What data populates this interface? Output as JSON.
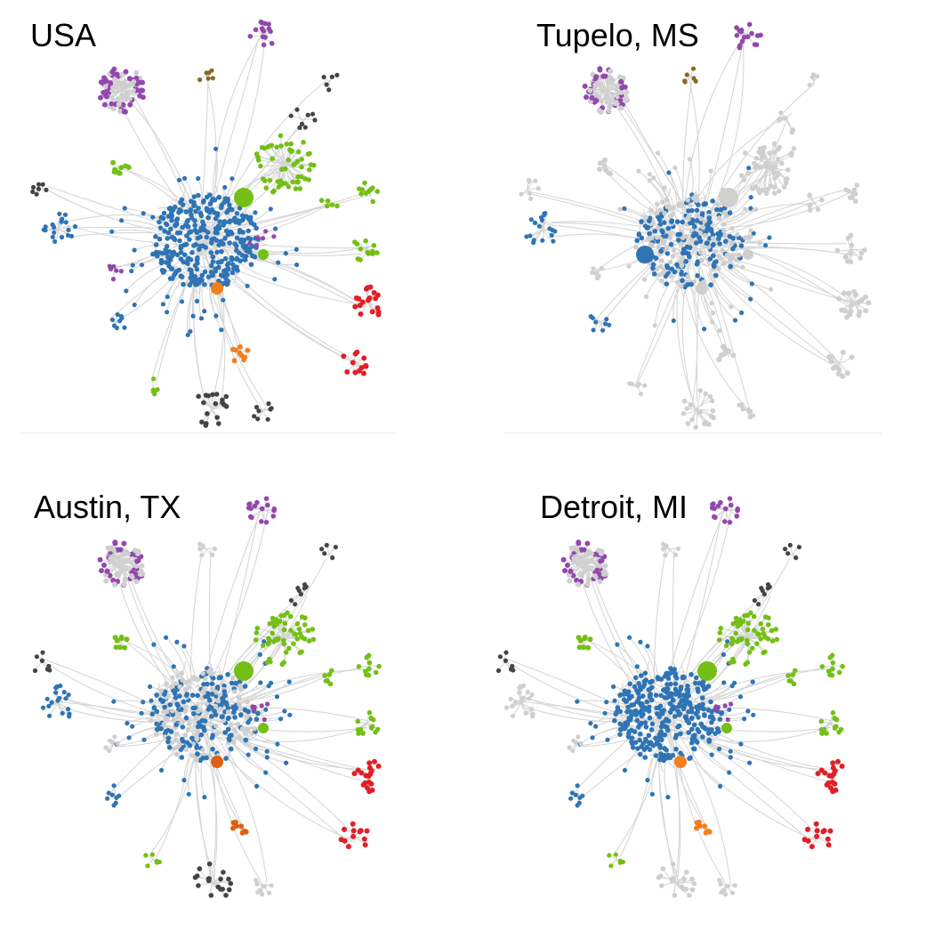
{
  "colors": {
    "blue": "#2f74b5",
    "purple": "#9347ad",
    "green": "#74bf15",
    "red": "#e21f25",
    "orange": "#f28020",
    "darkorange": "#dd6212",
    "brown": "#8c6824",
    "dark": "#444444",
    "gray": "#cfcfcf",
    "edge": "#d4d4d4"
  },
  "panels": [
    {
      "title": "USA",
      "colors": {
        "hub": "blue",
        "top_cluster": "purple",
        "top_mid": "brown",
        "upper_left_ring": "purple",
        "upper_left_green": "green",
        "left_far": "dark",
        "left_mid": "blue",
        "left_purple": "purple",
        "lower_left": "blue",
        "bottom": "dark",
        "bottom_small": "dark",
        "bottom_green": "green",
        "orange_cluster": "orange",
        "orange_node": "orange",
        "red_mid": "red",
        "red_low": "red",
        "right_green1": "green",
        "right_green2": "green",
        "right_green3": "green",
        "green_ne": "green",
        "big_green": "green",
        "mid_green": "green",
        "upper_dark": "dark",
        "top_right_dark": "dark",
        "small_purple_arc": "purple"
      }
    },
    {
      "title": "Tupelo, MS",
      "colors": {
        "hub": "blue",
        "hub_bias": "gray",
        "top_cluster": "purple",
        "top_mid": "brown",
        "upper_left_ring": "purple",
        "upper_left_green": "gray",
        "left_far": "gray",
        "left_mid": "blue",
        "left_purple": "gray",
        "lower_left": "blue",
        "bottom": "gray",
        "bottom_small": "gray",
        "bottom_green": "gray",
        "orange_cluster": "gray",
        "orange_node": "gray",
        "red_mid": "gray",
        "red_low": "gray",
        "right_green1": "gray",
        "right_green2": "gray",
        "right_green3": "gray",
        "green_ne": "gray",
        "big_green": "gray",
        "mid_green": "gray",
        "upper_dark": "gray",
        "top_right_dark": "gray",
        "small_purple_arc": "gray",
        "big_blue": "blue"
      }
    },
    {
      "title": "Austin, TX",
      "colors": {
        "hub": "blue",
        "hub_bias": "gray",
        "top_cluster": "purple",
        "top_mid": "gray",
        "upper_left_ring": "purple",
        "upper_left_green": "green",
        "left_far": "dark",
        "left_mid": "blue",
        "left_purple": "gray",
        "lower_left": "blue",
        "bottom": "dark",
        "bottom_small": "gray",
        "bottom_green": "green",
        "orange_cluster": "darkorange",
        "orange_node": "darkorange",
        "red_mid": "red",
        "red_low": "red",
        "right_green1": "green",
        "right_green2": "green",
        "right_green3": "green",
        "green_ne": "green",
        "big_green": "green",
        "mid_green": "green",
        "upper_dark": "dark",
        "top_right_dark": "dark",
        "small_purple_arc": "purple"
      }
    },
    {
      "title": "Detroit, MI",
      "colors": {
        "hub": "blue",
        "hub_bias": "blue",
        "top_cluster": "purple",
        "top_mid": "gray",
        "upper_left_ring": "purple",
        "upper_left_green": "green",
        "left_far": "dark",
        "left_mid": "gray",
        "left_purple": "gray",
        "lower_left": "blue",
        "bottom": "gray",
        "bottom_small": "gray",
        "bottom_green": "green",
        "orange_cluster": "orange",
        "orange_node": "orange",
        "red_mid": "red",
        "red_low": "red",
        "right_green1": "green",
        "right_green2": "green",
        "right_green3": "green",
        "green_ne": "green",
        "big_green": "green",
        "mid_green": "green",
        "upper_dark": "dark",
        "top_right_dark": "dark",
        "small_purple_arc": "purple"
      }
    }
  ]
}
